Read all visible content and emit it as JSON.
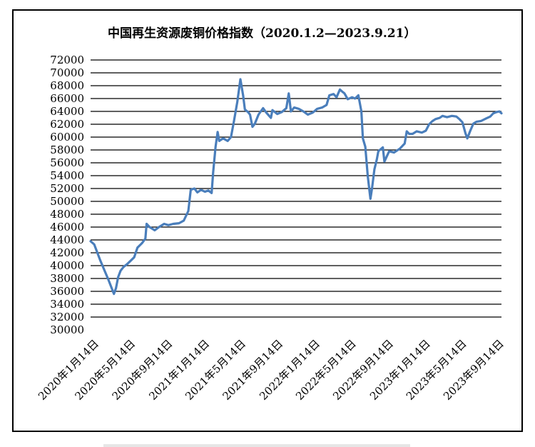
{
  "chart_data": {
    "type": "line",
    "title": "中国再生资源废铜价格指数（2020.1.2—2023.9.21）",
    "xlabel": "",
    "ylabel": "",
    "ylim": [
      30000,
      72000
    ],
    "y_ticks": [
      30000,
      32000,
      34000,
      36000,
      38000,
      40000,
      42000,
      44000,
      46000,
      48000,
      50000,
      52000,
      54000,
      56000,
      58000,
      60000,
      62000,
      64000,
      66000,
      68000,
      70000,
      72000
    ],
    "x_ticks": [
      {
        "label": "2020年1月14日",
        "date": "2020-01-14"
      },
      {
        "label": "2020年5月14日",
        "date": "2020-05-14"
      },
      {
        "label": "2020年9月14日",
        "date": "2020-09-14"
      },
      {
        "label": "2021年1月14日",
        "date": "2021-01-14"
      },
      {
        "label": "2021年5月14日",
        "date": "2021-05-14"
      },
      {
        "label": "2021年9月14日",
        "date": "2021-09-14"
      },
      {
        "label": "2022年1月14日",
        "date": "2022-01-14"
      },
      {
        "label": "2022年5月14日",
        "date": "2022-05-14"
      },
      {
        "label": "2022年9月14日",
        "date": "2022-09-14"
      },
      {
        "label": "2023年1月14日",
        "date": "2023-01-14"
      },
      {
        "label": "2023年5月14日",
        "date": "2023-05-14"
      },
      {
        "label": "2023年9月14日",
        "date": "2023-09-14"
      }
    ],
    "grid": true,
    "legend": "none",
    "line_color": "#4a7ebb",
    "series": [
      {
        "points": [
          [
            "2020-01-02",
            43800
          ],
          [
            "2020-01-14",
            43300
          ],
          [
            "2020-02-03",
            40800
          ],
          [
            "2020-03-01",
            37800
          ],
          [
            "2020-03-19",
            35600
          ],
          [
            "2020-03-26",
            36500
          ],
          [
            "2020-04-02",
            38200
          ],
          [
            "2020-04-10",
            39200
          ],
          [
            "2020-04-20",
            39800
          ],
          [
            "2020-05-01",
            40200
          ],
          [
            "2020-05-12",
            40700
          ],
          [
            "2020-05-25",
            41300
          ],
          [
            "2020-06-05",
            42800
          ],
          [
            "2020-06-20",
            43500
          ],
          [
            "2020-07-01",
            44200
          ],
          [
            "2020-07-05",
            46500
          ],
          [
            "2020-07-15",
            46000
          ],
          [
            "2020-07-25",
            45700
          ],
          [
            "2020-08-01",
            45500
          ],
          [
            "2020-08-15",
            46000
          ],
          [
            "2020-09-01",
            46500
          ],
          [
            "2020-09-15",
            46300
          ],
          [
            "2020-10-01",
            46500
          ],
          [
            "2020-10-20",
            46600
          ],
          [
            "2020-11-05",
            47000
          ],
          [
            "2020-11-20",
            48500
          ],
          [
            "2020-11-28",
            51800
          ],
          [
            "2020-12-10",
            52000
          ],
          [
            "2020-12-20",
            51400
          ],
          [
            "2021-01-01",
            51800
          ],
          [
            "2021-01-14",
            51500
          ],
          [
            "2021-01-25",
            51700
          ],
          [
            "2021-02-05",
            51300
          ],
          [
            "2021-02-10",
            54500
          ],
          [
            "2021-02-18",
            58500
          ],
          [
            "2021-02-25",
            60800
          ],
          [
            "2021-03-02",
            59400
          ],
          [
            "2021-03-15",
            59800
          ],
          [
            "2021-03-30",
            59400
          ],
          [
            "2021-04-10",
            60000
          ],
          [
            "2021-04-20",
            62500
          ],
          [
            "2021-05-01",
            65500
          ],
          [
            "2021-05-11",
            69000
          ],
          [
            "2021-05-20",
            66500
          ],
          [
            "2021-05-26",
            64300
          ],
          [
            "2021-06-05",
            63900
          ],
          [
            "2021-06-12",
            63500
          ],
          [
            "2021-06-20",
            61600
          ],
          [
            "2021-06-28",
            62100
          ],
          [
            "2021-07-10",
            63500
          ],
          [
            "2021-07-25",
            64500
          ],
          [
            "2021-08-05",
            63800
          ],
          [
            "2021-08-20",
            63000
          ],
          [
            "2021-08-25",
            64200
          ],
          [
            "2021-09-10",
            63600
          ],
          [
            "2021-09-25",
            63900
          ],
          [
            "2021-10-10",
            64500
          ],
          [
            "2021-10-18",
            66800
          ],
          [
            "2021-10-25",
            64000
          ],
          [
            "2021-11-05",
            64600
          ],
          [
            "2021-11-20",
            64400
          ],
          [
            "2021-12-05",
            64000
          ],
          [
            "2021-12-20",
            63500
          ],
          [
            "2022-01-05",
            63800
          ],
          [
            "2022-01-20",
            64400
          ],
          [
            "2022-02-05",
            64600
          ],
          [
            "2022-02-20",
            65000
          ],
          [
            "2022-03-01",
            66500
          ],
          [
            "2022-03-15",
            66700
          ],
          [
            "2022-03-25",
            66200
          ],
          [
            "2022-04-05",
            67400
          ],
          [
            "2022-04-12",
            67100
          ],
          [
            "2022-04-20",
            66800
          ],
          [
            "2022-05-01",
            65900
          ],
          [
            "2022-05-15",
            66200
          ],
          [
            "2022-05-25",
            66000
          ],
          [
            "2022-06-05",
            66500
          ],
          [
            "2022-06-15",
            64000
          ],
          [
            "2022-06-20",
            59800
          ],
          [
            "2022-06-28",
            58500
          ],
          [
            "2022-07-06",
            54000
          ],
          [
            "2022-07-12",
            51500
          ],
          [
            "2022-07-15",
            50400
          ],
          [
            "2022-07-20",
            52000
          ],
          [
            "2022-07-28",
            55000
          ],
          [
            "2022-08-05",
            56500
          ],
          [
            "2022-08-10",
            57800
          ],
          [
            "2022-08-20",
            58200
          ],
          [
            "2022-08-25",
            58400
          ],
          [
            "2022-08-30",
            56200
          ],
          [
            "2022-09-05",
            56800
          ],
          [
            "2022-09-15",
            57800
          ],
          [
            "2022-10-01",
            57600
          ],
          [
            "2022-10-20",
            58200
          ],
          [
            "2022-11-05",
            59000
          ],
          [
            "2022-11-12",
            60900
          ],
          [
            "2022-11-20",
            60500
          ],
          [
            "2022-12-01",
            60500
          ],
          [
            "2022-12-15",
            60900
          ],
          [
            "2023-01-01",
            60700
          ],
          [
            "2023-01-14",
            61000
          ],
          [
            "2023-01-25",
            62000
          ],
          [
            "2023-02-05",
            62500
          ],
          [
            "2023-02-15",
            62800
          ],
          [
            "2023-03-01",
            63000
          ],
          [
            "2023-03-10",
            63300
          ],
          [
            "2023-03-25",
            63100
          ],
          [
            "2023-04-10",
            63300
          ],
          [
            "2023-04-25",
            63200
          ],
          [
            "2023-05-05",
            62800
          ],
          [
            "2023-05-15",
            62300
          ],
          [
            "2023-05-25",
            60600
          ],
          [
            "2023-05-31",
            59800
          ],
          [
            "2023-06-10",
            61000
          ],
          [
            "2023-06-20",
            62100
          ],
          [
            "2023-07-01",
            62400
          ],
          [
            "2023-07-15",
            62500
          ],
          [
            "2023-08-01",
            62900
          ],
          [
            "2023-08-15",
            63200
          ],
          [
            "2023-08-25",
            63700
          ],
          [
            "2023-09-05",
            63900
          ],
          [
            "2023-09-14",
            64000
          ],
          [
            "2023-09-21",
            63700
          ]
        ]
      }
    ]
  }
}
